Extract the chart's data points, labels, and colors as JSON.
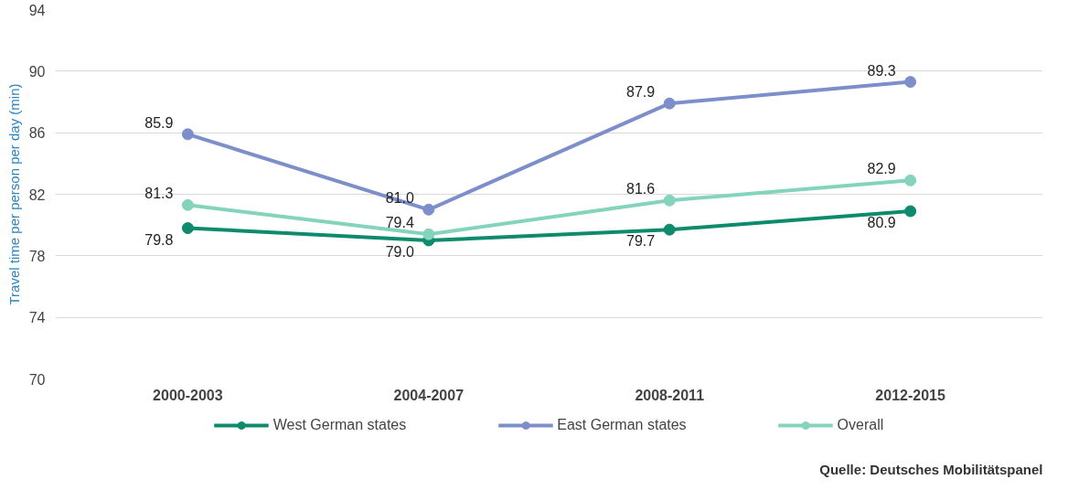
{
  "chart_data": {
    "type": "line",
    "ylabel": "Travel time per person per day (min)",
    "categories": [
      "2000-2003",
      "2004-2007",
      "2008-2011",
      "2012-2015"
    ],
    "series": [
      {
        "name": "West German states",
        "color": "#0e8a6c",
        "values": [
          79.8,
          79.0,
          79.7,
          80.9
        ],
        "value_labels": [
          "79.8",
          "79.0",
          "79.7",
          "80.9"
        ]
      },
      {
        "name": "East German states",
        "color": "#7d8fcb",
        "values": [
          85.9,
          81.0,
          87.9,
          89.3
        ],
        "value_labels": [
          "85.9",
          "81.0",
          "87.9",
          "89.3"
        ]
      },
      {
        "name": "Overall",
        "color": "#83d3bd",
        "values": [
          81.3,
          79.4,
          81.6,
          82.9
        ],
        "value_labels": [
          "81.3",
          "79.4",
          "81.6",
          "82.9"
        ]
      }
    ],
    "ylim": [
      70,
      94
    ],
    "yticks": [
      70,
      74,
      78,
      82,
      86,
      90,
      94
    ],
    "grid": "y",
    "legend": "bottom",
    "marker": "circle",
    "line_style": "solid",
    "annotations": [
      "Quelle: Deutsches Mobilitätspanel"
    ]
  }
}
